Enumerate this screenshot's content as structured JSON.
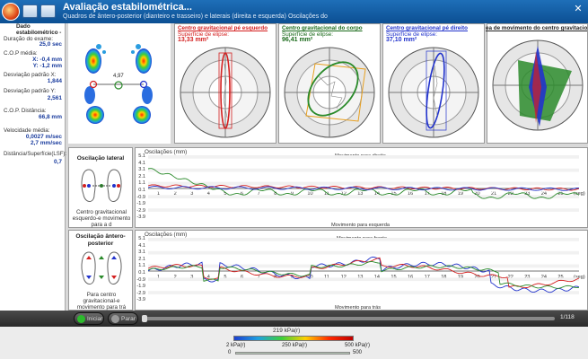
{
  "window": {
    "title": "Avaliação estabilométrica...",
    "subtitle": "Quadros de ântero-posterior (dianteiro e trasseiro) e laterais (direita e esquerda) Oscilações do",
    "close": "✕"
  },
  "stats": {
    "header": "Dado estabilométrico -",
    "exam_duration_label": "Duração do exame:",
    "exam_duration": "25,0 sec",
    "cop_mean_label": "C.O.P média:",
    "cop_x": "X: -0,4 mm",
    "cop_y": "Y: -1,2 mm",
    "sdx_label": "Desviação padrão X:",
    "sdx": "1,844",
    "sdy_label": "Desviação padrão Y:",
    "sdy": "2,561",
    "cop_dist_label": "C.O.P. Distância:",
    "cop_dist": "66,8 mm",
    "vel_label": "Velocidade média:",
    "vel_1": "0,0027 m/sec",
    "vel_2": "2,7 mm/sec",
    "ratio_label": "Distância/Superfície(LSF):",
    "ratio": "0,7"
  },
  "foot_map": {
    "value": "4,97"
  },
  "ellipses": [
    {
      "title": "Centro gravitacional pé esquerdo",
      "sub": "Superfície de elipse:",
      "value": "13,33 mm²",
      "color": "#d42020"
    },
    {
      "title": "Centro gravitacional do corpo",
      "sub": "Superfície de elipse:",
      "value": "96,41 mm²",
      "color": "#2a8a2a"
    },
    {
      "title": "Centro gravitacional pé direito",
      "sub": "Superfície de elipse:",
      "value": "37,10 mm²",
      "color": "#2233cc"
    },
    {
      "title": "ea de movimento do centro gravitacional"
    }
  ],
  "lateral": {
    "title": "Oscilação lateral",
    "caption": "Centro gravitacional esquerdo-e movimento para a d",
    "ylabel": "Oscilações (mm)",
    "top_label": "Movimento para direita",
    "bottom_label": "Movimento para esquerda",
    "yticks": [
      "5.1",
      "4.1",
      "3.1",
      "2.1",
      "1.1",
      "0.1",
      "-0.9",
      "-1.9",
      "-2.9",
      "-3.9"
    ],
    "unit": "(seg)"
  },
  "antero": {
    "title": "Oscilação ântero-posterior",
    "caption": "Para centro gravitacional-e movimento para trá",
    "ylabel": "Oscilações (mm)",
    "top_label": "Movimento para frente",
    "bottom_label": "Movimento para trás",
    "yticks": [
      "5.1",
      "4.1",
      "3.1",
      "2.1",
      "1.1",
      "0.1",
      "-0.9",
      "-1.9",
      "-2.9",
      "-3.9"
    ],
    "unit": "(seg)"
  },
  "xticks": [
    "1",
    "2",
    "3",
    "4",
    "5",
    "6",
    "7",
    "8",
    "9",
    "10",
    "11",
    "12",
    "13",
    "14",
    "15",
    "16",
    "17",
    "18",
    "19",
    "20",
    "21",
    "22",
    "23",
    "24",
    "25"
  ],
  "controls": {
    "start": "Iniciar",
    "stop": "Parar",
    "counter": "1/118"
  },
  "legend": {
    "scale_value": "219 kPa(r)",
    "min": "2 kPa(r)",
    "mid": "250 kPa(r)",
    "max": "500 kPa(r)",
    "s_min": "0",
    "s_max": "500"
  }
}
